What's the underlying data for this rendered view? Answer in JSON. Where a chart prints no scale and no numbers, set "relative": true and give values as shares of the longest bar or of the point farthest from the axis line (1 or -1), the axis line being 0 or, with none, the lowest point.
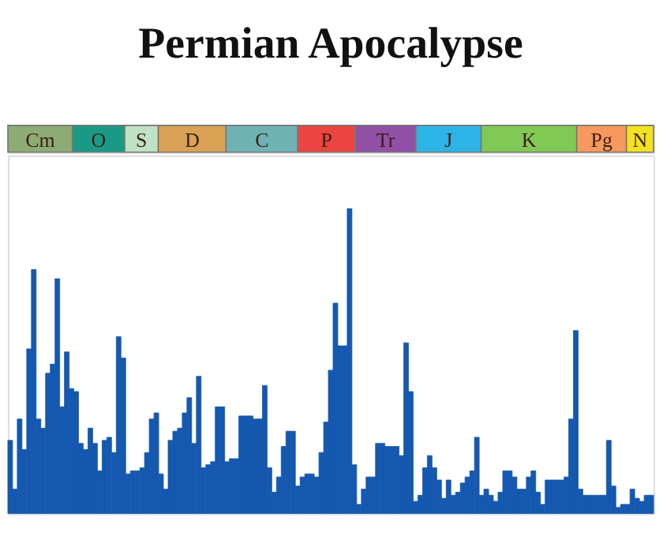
{
  "chart_data": [
    {
      "type": "bar",
      "title": "Permian Apocalypse",
      "orientation": "horizontal",
      "stacked": true,
      "relative": true,
      "categories": [
        null
      ],
      "series": [
        {
          "name": "Cm",
          "color": "#8dab74",
          "values": [
            0.1
          ]
        },
        {
          "name": "O",
          "color": "#1a9a86",
          "values": [
            0.081
          ]
        },
        {
          "name": "S",
          "color": "#bfe2c4",
          "values": [
            0.052
          ]
        },
        {
          "name": "D",
          "color": "#d9a255",
          "values": [
            0.105
          ]
        },
        {
          "name": "C",
          "color": "#6fb2b4",
          "values": [
            0.111
          ]
        },
        {
          "name": "P",
          "color": "#ec4440",
          "values": [
            0.089
          ]
        },
        {
          "name": "Tr",
          "color": "#9150a6",
          "values": [
            0.094
          ]
        },
        {
          "name": "J",
          "color": "#2db4e6",
          "values": [
            0.101
          ]
        },
        {
          "name": "K",
          "color": "#80c955",
          "values": [
            0.148
          ]
        },
        {
          "name": "Pg",
          "color": "#f7985e",
          "values": [
            0.077
          ]
        },
        {
          "name": "N",
          "color": "#f3e21c",
          "values": [
            0.042
          ]
        }
      ]
    },
    {
      "type": "bar",
      "relative": true,
      "categories": [
        null,
        null,
        null,
        null,
        null,
        null,
        null,
        null,
        null,
        null,
        null,
        null,
        null,
        null,
        null,
        null,
        null,
        null,
        null,
        null,
        null,
        null,
        null,
        null,
        null,
        null,
        null,
        null,
        null,
        null,
        null,
        null,
        null,
        null,
        null,
        null,
        null,
        null,
        null,
        null,
        null,
        null,
        null,
        null,
        null,
        null,
        null,
        null,
        null,
        null,
        null,
        null,
        null,
        null,
        null,
        null,
        null,
        null,
        null,
        null,
        null,
        null,
        null,
        null,
        null,
        null,
        null,
        null,
        null,
        null,
        null,
        null,
        null,
        null,
        null,
        null,
        null,
        null,
        null,
        null,
        null,
        null,
        null,
        null,
        null,
        null,
        null,
        null,
        null,
        null,
        null,
        null,
        null,
        null,
        null,
        null,
        null,
        null,
        null,
        null,
        null,
        null,
        null,
        null,
        null,
        null,
        null,
        null,
        null,
        null,
        null,
        null,
        null,
        null,
        null,
        null,
        null,
        null,
        null,
        null,
        null,
        null,
        null,
        null,
        null,
        null,
        null,
        null,
        null,
        null,
        null,
        null,
        null,
        null,
        null,
        null,
        null
      ],
      "series": [
        {
          "color": "#1558b0",
          "values": [
            0.24,
            0.08,
            0.31,
            0.21,
            0.54,
            0.8,
            0.31,
            0.28,
            0.46,
            0.49,
            0.77,
            0.35,
            0.53,
            0.41,
            0.4,
            0.23,
            0.21,
            0.28,
            0.23,
            0.14,
            0.24,
            0.25,
            0.2,
            0.58,
            0.51,
            0.13,
            0.14,
            0.14,
            0.15,
            0.2,
            0.31,
            0.33,
            0.13,
            0.08,
            0.24,
            0.27,
            0.28,
            0.33,
            0.38,
            0.23,
            0.45,
            0.15,
            0.16,
            0.17,
            0.35,
            0.35,
            0.17,
            0.18,
            0.18,
            0.32,
            0.32,
            0.32,
            0.31,
            0.31,
            0.42,
            0.15,
            0.07,
            0.12,
            0.22,
            0.27,
            0.27,
            0.09,
            0.12,
            0.13,
            0.13,
            0.12,
            0.2,
            0.3,
            0.47,
            0.69,
            0.55,
            0.55,
            1,
            0.16,
            0.03,
            0.08,
            0.12,
            0.12,
            0.23,
            0.23,
            0.22,
            0.22,
            0.22,
            0.19,
            0.56,
            0.4,
            0.04,
            0.06,
            0.15,
            0.19,
            0.15,
            0.11,
            0.05,
            0.11,
            0.06,
            0.07,
            0.1,
            0.12,
            0.14,
            0.25,
            0.06,
            0.08,
            0.06,
            0.04,
            0.07,
            0.14,
            0.14,
            0.12,
            0.08,
            0.08,
            0.12,
            0.14,
            0.07,
            0.03,
            0.11,
            0.11,
            0.11,
            0.11,
            0.12,
            0.31,
            0.6,
            0.08,
            0.06,
            0.06,
            0.06,
            0.06,
            0.06,
            0.24,
            0.09,
            0.02,
            0.03,
            0.03,
            0.08,
            0.05,
            0.04,
            0.06,
            0.06
          ]
        }
      ]
    }
  ]
}
